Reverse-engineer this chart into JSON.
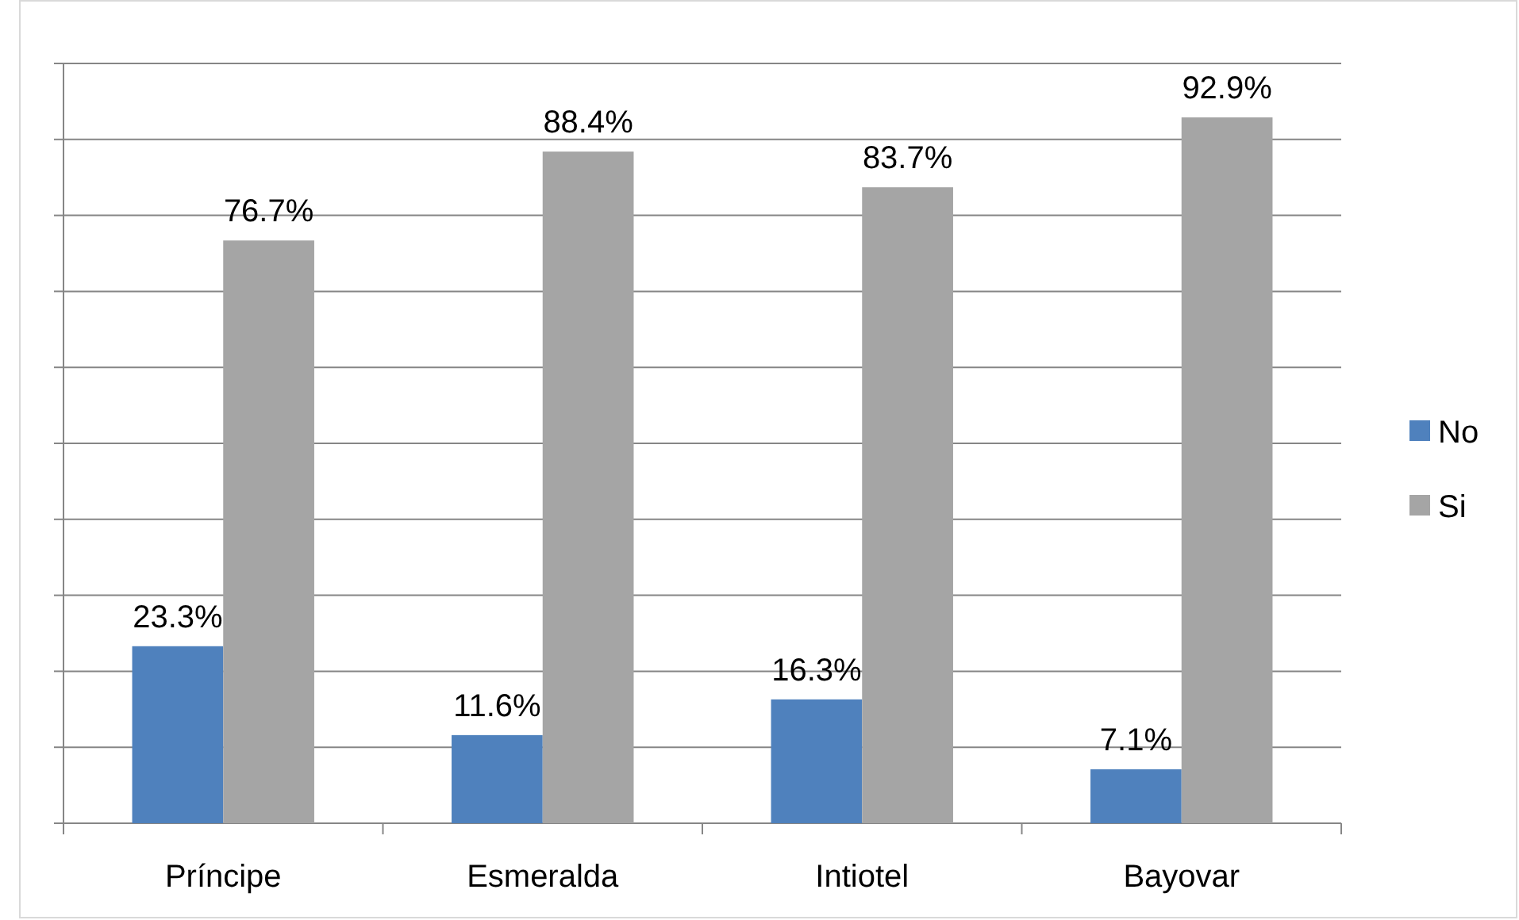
{
  "chart_data": {
    "type": "bar",
    "categories": [
      "Príncipe",
      "Esmeralda",
      "Intiotel",
      "Bayovar"
    ],
    "series": [
      {
        "name": "No",
        "color": "#4f81bd",
        "values": [
          23.3,
          11.6,
          16.3,
          7.1
        ],
        "value_labels": [
          "23.3%",
          "11.6%",
          "16.3%",
          "7.1%"
        ]
      },
      {
        "name": "Si",
        "color": "#a5a5a5",
        "values": [
          76.7,
          88.4,
          83.7,
          92.9
        ],
        "value_labels": [
          "76.7%",
          "88.4%",
          "83.7%",
          "92.9%"
        ]
      }
    ],
    "ylim": [
      0,
      100
    ],
    "yticks": [
      {
        "value": 0,
        "label": null
      },
      {
        "value": 10,
        "label": null
      },
      {
        "value": 20,
        "label": null
      },
      {
        "value": 30,
        "label": null
      },
      {
        "value": 40,
        "label": null
      },
      {
        "value": 50,
        "label": null
      },
      {
        "value": 60,
        "label": null
      },
      {
        "value": 70,
        "label": null
      },
      {
        "value": 80,
        "label": null
      },
      {
        "value": 90,
        "label": null
      },
      {
        "value": 100,
        "label": null
      }
    ],
    "grid": "y",
    "legend": "right",
    "tick_labels": "x"
  }
}
